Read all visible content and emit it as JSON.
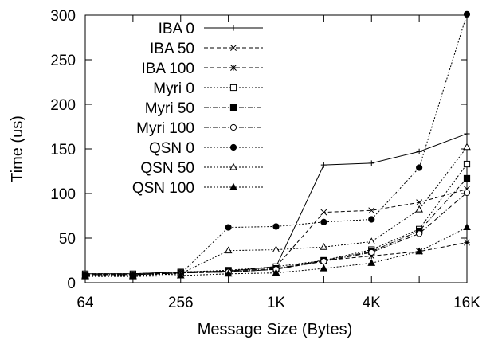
{
  "chart_data": {
    "type": "line",
    "xlabel": "Message Size (Bytes)",
    "ylabel": "Time (us)",
    "x_scale": "log2",
    "xlim": [
      64,
      16384
    ],
    "ylim": [
      0,
      300
    ],
    "x_ticks": [
      {
        "value": 64,
        "label": "64"
      },
      {
        "value": 256,
        "label": "256"
      },
      {
        "value": 1024,
        "label": "1K"
      },
      {
        "value": 4096,
        "label": "4K"
      },
      {
        "value": 16384,
        "label": "16K"
      }
    ],
    "y_ticks": [
      0,
      50,
      100,
      150,
      200,
      250,
      300
    ],
    "x": [
      64,
      128,
      256,
      512,
      1024,
      2048,
      4096,
      8192,
      16384
    ],
    "legend_position": "top-right",
    "grid": false,
    "series": [
      {
        "name": "IBA 0",
        "marker": "plus",
        "dash": "solid",
        "values": [
          10,
          10,
          12,
          13,
          18,
          132,
          134,
          147,
          167
        ]
      },
      {
        "name": "IBA 50",
        "marker": "x",
        "dash": "dashed",
        "values": [
          10,
          10,
          12,
          13,
          18,
          79,
          81,
          90,
          105
        ]
      },
      {
        "name": "IBA 100",
        "marker": "star",
        "dash": "dashed",
        "values": [
          9,
          9,
          11,
          12,
          15,
          25,
          30,
          35,
          45
        ]
      },
      {
        "name": "Myri 0",
        "marker": "square-open",
        "dash": "dotted",
        "values": [
          10,
          10,
          12,
          14,
          18,
          25,
          37,
          60,
          133
        ]
      },
      {
        "name": "Myri 50",
        "marker": "square-filled",
        "dash": "dashdot",
        "values": [
          9,
          9,
          11,
          13,
          16,
          25,
          35,
          58,
          117
        ]
      },
      {
        "name": "Myri 100",
        "marker": "circle-open",
        "dash": "dashdot",
        "values": [
          9,
          9,
          11,
          12,
          15,
          24,
          34,
          55,
          101
        ]
      },
      {
        "name": "QSN 0",
        "marker": "circle-filled",
        "dash": "dotted",
        "values": [
          8,
          8,
          10,
          62,
          63,
          68,
          71,
          129,
          301
        ]
      },
      {
        "name": "QSN 50",
        "marker": "triangle-open",
        "dash": "dotted",
        "values": [
          8,
          8,
          10,
          36,
          37,
          40,
          46,
          82,
          152
        ]
      },
      {
        "name": "QSN 100",
        "marker": "triangle-filled",
        "dash": "dotted",
        "values": [
          7,
          7,
          8,
          10,
          11,
          16,
          22,
          35,
          62
        ]
      }
    ]
  }
}
